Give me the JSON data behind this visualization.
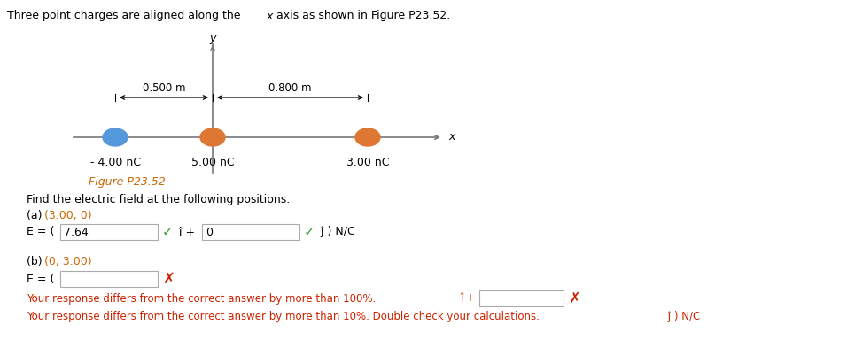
{
  "background_color": "#ffffff",
  "text_color": "#000000",
  "title_color": "#1a1a1a",
  "orange_color": "#cc6600",
  "green_color": "#3a9e3a",
  "red_color": "#cc2200",
  "axis_color": "#777777",
  "charge1_color": "#5599dd",
  "charge2_color": "#dd7733",
  "charge3_color": "#dd7733",
  "box_edge_color": "#aaaaaa",
  "charge1_label": "- 4.00 nC",
  "charge2_label": "5.00 nC",
  "charge3_label": "3.00 nC",
  "dist1_label": "0.500 m",
  "dist2_label": "0.800 m",
  "fig_label": "Figure P23.52",
  "find_text": "Find the electric field at the following positions.",
  "error1": "Your response differs from the correct answer by more than 100%.",
  "error2": "Your response differs from the correct answer by more than 10%. Double check your calculations."
}
